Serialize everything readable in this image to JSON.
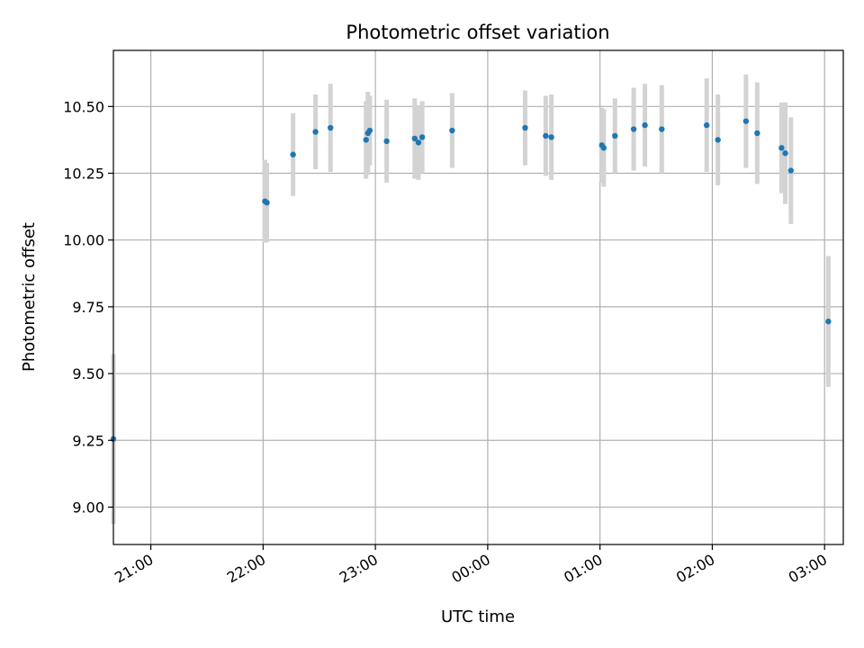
{
  "chart_data": {
    "type": "scatter",
    "title": "Photometric offset variation",
    "xlabel": "UTC time",
    "ylabel": "Photometric offset",
    "xlim": [
      "20:40",
      "03:10"
    ],
    "ylim": [
      8.86,
      10.71
    ],
    "grid": true,
    "x_ticks": [
      "21:00",
      "22:00",
      "23:00",
      "00:00",
      "01:00",
      "02:00",
      "03:00"
    ],
    "y_ticks": [
      "9.00",
      "9.25",
      "9.50",
      "9.75",
      "10.00",
      "10.25",
      "10.50"
    ],
    "colors": {
      "point": "#1f77b4",
      "errorbar": "#d3d3d3",
      "grid": "#b0b0b0"
    },
    "points": [
      {
        "t": "20:40",
        "y": 9.255,
        "err": 0.318
      },
      {
        "t": "22:01",
        "y": 10.145,
        "err": 0.155
      },
      {
        "t": "22:02",
        "y": 10.14,
        "err": 0.148
      },
      {
        "t": "22:16",
        "y": 10.32,
        "err": 0.155
      },
      {
        "t": "22:28",
        "y": 10.405,
        "err": 0.14
      },
      {
        "t": "22:36",
        "y": 10.42,
        "err": 0.165
      },
      {
        "t": "22:55",
        "y": 10.375,
        "err": 0.145
      },
      {
        "t": "22:56",
        "y": 10.4,
        "err": 0.155
      },
      {
        "t": "22:57",
        "y": 10.41,
        "err": 0.13
      },
      {
        "t": "23:06",
        "y": 10.37,
        "err": 0.155
      },
      {
        "t": "23:21",
        "y": 10.38,
        "err": 0.15
      },
      {
        "t": "23:23",
        "y": 10.365,
        "err": 0.14
      },
      {
        "t": "23:25",
        "y": 10.385,
        "err": 0.135
      },
      {
        "t": "23:41",
        "y": 10.41,
        "err": 0.14
      },
      {
        "t": "00:20",
        "y": 10.42,
        "err": 0.14
      },
      {
        "t": "00:31",
        "y": 10.39,
        "err": 0.15
      },
      {
        "t": "00:34",
        "y": 10.385,
        "err": 0.16
      },
      {
        "t": "01:01",
        "y": 10.355,
        "err": 0.14
      },
      {
        "t": "01:02",
        "y": 10.345,
        "err": 0.145
      },
      {
        "t": "01:08",
        "y": 10.39,
        "err": 0.14
      },
      {
        "t": "01:18",
        "y": 10.415,
        "err": 0.155
      },
      {
        "t": "01:24",
        "y": 10.43,
        "err": 0.155
      },
      {
        "t": "01:33",
        "y": 10.415,
        "err": 0.165
      },
      {
        "t": "01:57",
        "y": 10.43,
        "err": 0.175
      },
      {
        "t": "02:03",
        "y": 10.375,
        "err": 0.17
      },
      {
        "t": "02:18",
        "y": 10.445,
        "err": 0.175
      },
      {
        "t": "02:24",
        "y": 10.4,
        "err": 0.19
      },
      {
        "t": "02:37",
        "y": 10.345,
        "err": 0.17
      },
      {
        "t": "02:39",
        "y": 10.325,
        "err": 0.19
      },
      {
        "t": "02:42",
        "y": 10.26,
        "err": 0.2
      },
      {
        "t": "03:02",
        "y": 9.695,
        "err": 0.245
      }
    ]
  }
}
